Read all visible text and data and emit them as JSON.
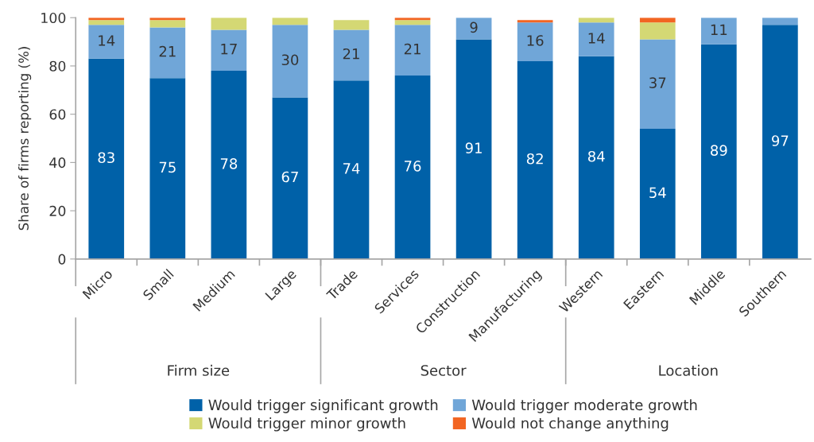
{
  "chart_data": {
    "type": "bar",
    "stacked": true,
    "ylabel": "Share of firms reporting (%)",
    "categories": [
      "Micro",
      "Small",
      "Medium",
      "Large",
      "Trade",
      "Services",
      "Construction",
      "Manufacturing",
      "Western",
      "Eastern",
      "Middle",
      "Southern"
    ],
    "annotations": [
      "Firm size",
      "Sector",
      "Location"
    ],
    "ylim": [
      0,
      100
    ],
    "yticks": [
      0,
      20,
      40,
      60,
      80,
      100
    ],
    "grid": false,
    "legend": "bottom",
    "series": [
      {
        "name": "Would trigger significant growth",
        "color": "#0061a8",
        "values": [
          83,
          75,
          78,
          67,
          74,
          76,
          91,
          82,
          84,
          54,
          89,
          97
        ],
        "value_labels": [
          "83",
          "75",
          "78",
          "67",
          "74",
          "76",
          "91",
          "82",
          "84",
          "54",
          "89",
          "97"
        ]
      },
      {
        "name": "Would trigger moderate growth",
        "color": "#70a6d8",
        "values": [
          14,
          21,
          17,
          30,
          21,
          21,
          9,
          16,
          14,
          37,
          11,
          3
        ],
        "value_labels": [
          "14",
          "21",
          "17",
          "30",
          "21",
          "21",
          "9",
          "16",
          "14",
          "37",
          "11",
          null
        ]
      },
      {
        "name": "Would trigger minor growth",
        "color": "#d4d874",
        "values": [
          2,
          3,
          5,
          3,
          4,
          2,
          null,
          null,
          2,
          7,
          null,
          null
        ]
      },
      {
        "name": "Would not change anything",
        "color": "#f26522",
        "values": [
          1,
          1,
          null,
          null,
          null,
          1,
          null,
          1,
          null,
          2,
          null,
          null
        ]
      }
    ]
  }
}
